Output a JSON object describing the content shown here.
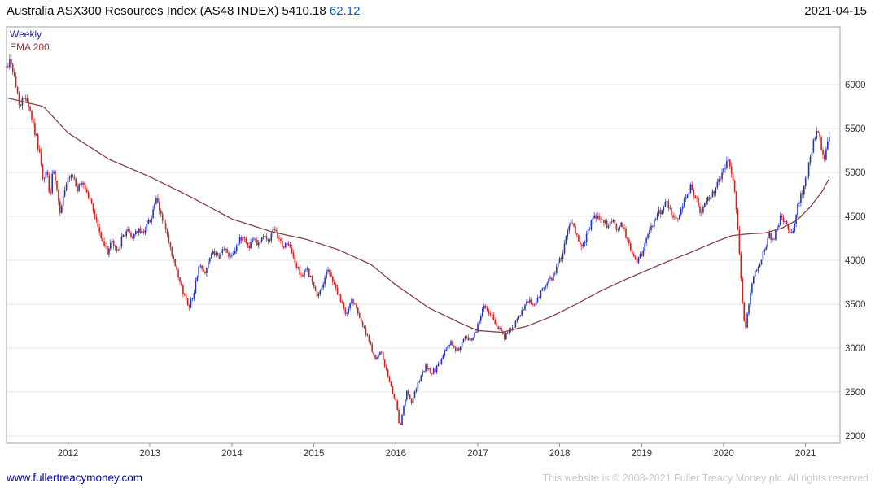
{
  "header": {
    "title": "Australia ASX300 Resources Index (AS48 INDEX)",
    "last_price": "5410.18",
    "change": "62.12",
    "date": "2021-04-15"
  },
  "legend": {
    "timeframe": "Weekly",
    "overlay": "EMA 200"
  },
  "footer": {
    "link": "www.fullertreacymoney.com",
    "copyright": "This website is © 2008-2021 Fuller Treacy Money plc. All rights reserved"
  },
  "colors": {
    "up": "#2233bb",
    "down": "#cc2222",
    "ema": "#8b4040",
    "grid": "#e4e4e4",
    "border": "#a0a0a0",
    "axis_text": "#333333",
    "change": "#1155cc",
    "weekly_label": "#22229a",
    "ema_label": "#993333",
    "link": "#0000bb",
    "copyright": "#c8c8c8"
  },
  "chart_data": {
    "type": "candlestick",
    "title": "Australia ASX300 Resources Index (AS48 INDEX)",
    "timeframe": "Weekly",
    "overlay": "EMA 200",
    "last_price": 5410.18,
    "change": 62.12,
    "as_of": "2021-04-15",
    "xlabel": "",
    "ylabel": "",
    "grid": true,
    "legend_position": "top-left",
    "x_range": [
      2011.25,
      2021.42
    ],
    "y_range": [
      1917,
      6657
    ],
    "x_ticks": [
      2012,
      2013,
      2014,
      2015,
      2016,
      2017,
      2018,
      2019,
      2020,
      2021
    ],
    "y_ticks": [
      6000,
      5500,
      5000,
      4500,
      4000,
      3500,
      3000,
      2500,
      2000
    ],
    "noise_seed": 42,
    "noise_pct": 0.009,
    "series_note": "Anchor points [decimal_year, index_value] traced from chart; weekly candles interpolated between anchors.",
    "price_anchors": [
      [
        2011.25,
        6200
      ],
      [
        2011.3,
        6300
      ],
      [
        2011.36,
        6000
      ],
      [
        2011.42,
        5750
      ],
      [
        2011.48,
        5900
      ],
      [
        2011.54,
        5700
      ],
      [
        2011.6,
        5450
      ],
      [
        2011.65,
        5250
      ],
      [
        2011.7,
        4850
      ],
      [
        2011.74,
        5050
      ],
      [
        2011.78,
        4700
      ],
      [
        2011.82,
        5050
      ],
      [
        2011.86,
        4800
      ],
      [
        2011.9,
        4550
      ],
      [
        2011.95,
        4750
      ],
      [
        2012.0,
        4900
      ],
      [
        2012.06,
        4950
      ],
      [
        2012.12,
        4800
      ],
      [
        2012.18,
        4900
      ],
      [
        2012.24,
        4750
      ],
      [
        2012.3,
        4600
      ],
      [
        2012.36,
        4400
      ],
      [
        2012.42,
        4200
      ],
      [
        2012.48,
        4100
      ],
      [
        2012.54,
        4200
      ],
      [
        2012.6,
        4100
      ],
      [
        2012.66,
        4250
      ],
      [
        2012.72,
        4350
      ],
      [
        2012.78,
        4250
      ],
      [
        2012.84,
        4350
      ],
      [
        2012.9,
        4300
      ],
      [
        2012.96,
        4400
      ],
      [
        2013.02,
        4500
      ],
      [
        2013.07,
        4700
      ],
      [
        2013.12,
        4550
      ],
      [
        2013.18,
        4400
      ],
      [
        2013.24,
        4150
      ],
      [
        2013.3,
        3950
      ],
      [
        2013.36,
        3750
      ],
      [
        2013.42,
        3600
      ],
      [
        2013.48,
        3480
      ],
      [
        2013.54,
        3650
      ],
      [
        2013.6,
        3950
      ],
      [
        2013.66,
        3850
      ],
      [
        2013.72,
        4000
      ],
      [
        2013.78,
        4100
      ],
      [
        2013.84,
        4000
      ],
      [
        2013.9,
        4150
      ],
      [
        2013.96,
        4050
      ],
      [
        2014.02,
        4100
      ],
      [
        2014.08,
        4200
      ],
      [
        2014.14,
        4280
      ],
      [
        2014.2,
        4150
      ],
      [
        2014.26,
        4250
      ],
      [
        2014.32,
        4200
      ],
      [
        2014.38,
        4280
      ],
      [
        2014.44,
        4220
      ],
      [
        2014.5,
        4320
      ],
      [
        2014.56,
        4280
      ],
      [
        2014.62,
        4150
      ],
      [
        2014.68,
        4200
      ],
      [
        2014.74,
        4050
      ],
      [
        2014.8,
        3900
      ],
      [
        2014.86,
        3820
      ],
      [
        2014.92,
        3900
      ],
      [
        2014.98,
        3750
      ],
      [
        2015.04,
        3570
      ],
      [
        2015.1,
        3700
      ],
      [
        2015.16,
        3900
      ],
      [
        2015.22,
        3800
      ],
      [
        2015.28,
        3650
      ],
      [
        2015.34,
        3500
      ],
      [
        2015.4,
        3380
      ],
      [
        2015.46,
        3550
      ],
      [
        2015.52,
        3480
      ],
      [
        2015.58,
        3300
      ],
      [
        2015.64,
        3150
      ],
      [
        2015.7,
        3000
      ],
      [
        2015.76,
        2880
      ],
      [
        2015.82,
        2950
      ],
      [
        2015.88,
        2750
      ],
      [
        2015.94,
        2550
      ],
      [
        2016.0,
        2400
      ],
      [
        2016.05,
        2080
      ],
      [
        2016.09,
        2300
      ],
      [
        2016.14,
        2520
      ],
      [
        2016.19,
        2380
      ],
      [
        2016.25,
        2550
      ],
      [
        2016.31,
        2680
      ],
      [
        2016.37,
        2800
      ],
      [
        2016.43,
        2720
      ],
      [
        2016.49,
        2760
      ],
      [
        2016.55,
        2850
      ],
      [
        2016.61,
        2980
      ],
      [
        2016.67,
        3080
      ],
      [
        2016.73,
        2960
      ],
      [
        2016.79,
        3020
      ],
      [
        2016.85,
        3120
      ],
      [
        2016.91,
        3080
      ],
      [
        2016.97,
        3180
      ],
      [
        2017.03,
        3350
      ],
      [
        2017.08,
        3500
      ],
      [
        2017.14,
        3400
      ],
      [
        2017.2,
        3320
      ],
      [
        2017.26,
        3220
      ],
      [
        2017.32,
        3120
      ],
      [
        2017.38,
        3180
      ],
      [
        2017.44,
        3260
      ],
      [
        2017.5,
        3340
      ],
      [
        2017.56,
        3440
      ],
      [
        2017.62,
        3540
      ],
      [
        2017.68,
        3480
      ],
      [
        2017.74,
        3580
      ],
      [
        2017.8,
        3680
      ],
      [
        2017.86,
        3750
      ],
      [
        2017.92,
        3820
      ],
      [
        2017.98,
        3950
      ],
      [
        2018.04,
        4100
      ],
      [
        2018.1,
        4350
      ],
      [
        2018.16,
        4420
      ],
      [
        2018.22,
        4250
      ],
      [
        2018.28,
        4150
      ],
      [
        2018.34,
        4320
      ],
      [
        2018.4,
        4450
      ],
      [
        2018.46,
        4520
      ],
      [
        2018.52,
        4480
      ],
      [
        2018.58,
        4380
      ],
      [
        2018.64,
        4480
      ],
      [
        2018.7,
        4350
      ],
      [
        2018.76,
        4420
      ],
      [
        2018.82,
        4220
      ],
      [
        2018.88,
        4100
      ],
      [
        2018.94,
        3980
      ],
      [
        2019.0,
        4080
      ],
      [
        2019.06,
        4250
      ],
      [
        2019.12,
        4380
      ],
      [
        2019.18,
        4480
      ],
      [
        2019.24,
        4580
      ],
      [
        2019.3,
        4650
      ],
      [
        2019.36,
        4550
      ],
      [
        2019.42,
        4450
      ],
      [
        2019.48,
        4600
      ],
      [
        2019.54,
        4750
      ],
      [
        2019.6,
        4850
      ],
      [
        2019.66,
        4700
      ],
      [
        2019.72,
        4550
      ],
      [
        2019.78,
        4650
      ],
      [
        2019.84,
        4720
      ],
      [
        2019.9,
        4820
      ],
      [
        2019.96,
        4950
      ],
      [
        2020.02,
        5080
      ],
      [
        2020.06,
        5180
      ],
      [
        2020.1,
        5000
      ],
      [
        2020.14,
        4750
      ],
      [
        2020.18,
        4300
      ],
      [
        2020.22,
        3650
      ],
      [
        2020.26,
        3200
      ],
      [
        2020.3,
        3450
      ],
      [
        2020.34,
        3750
      ],
      [
        2020.4,
        3900
      ],
      [
        2020.46,
        4020
      ],
      [
        2020.52,
        4150
      ],
      [
        2020.56,
        4300
      ],
      [
        2020.6,
        4220
      ],
      [
        2020.66,
        4380
      ],
      [
        2020.7,
        4520
      ],
      [
        2020.74,
        4450
      ],
      [
        2020.78,
        4350
      ],
      [
        2020.82,
        4260
      ],
      [
        2020.86,
        4420
      ],
      [
        2020.9,
        4600
      ],
      [
        2020.94,
        4720
      ],
      [
        2020.98,
        4820
      ],
      [
        2021.02,
        4980
      ],
      [
        2021.06,
        5180
      ],
      [
        2021.1,
        5380
      ],
      [
        2021.14,
        5500
      ],
      [
        2021.17,
        5380
      ],
      [
        2021.2,
        5250
      ],
      [
        2021.23,
        5120
      ],
      [
        2021.26,
        5320
      ],
      [
        2021.3,
        5410.18
      ]
    ],
    "ema_anchors": [
      [
        2011.25,
        5850
      ],
      [
        2011.7,
        5750
      ],
      [
        2012.0,
        5450
      ],
      [
        2012.5,
        5150
      ],
      [
        2013.0,
        4950
      ],
      [
        2013.5,
        4720
      ],
      [
        2014.0,
        4470
      ],
      [
        2014.5,
        4320
      ],
      [
        2014.9,
        4240
      ],
      [
        2015.3,
        4120
      ],
      [
        2015.7,
        3950
      ],
      [
        2016.0,
        3720
      ],
      [
        2016.4,
        3460
      ],
      [
        2016.8,
        3280
      ],
      [
        2017.0,
        3200
      ],
      [
        2017.3,
        3180
      ],
      [
        2017.6,
        3250
      ],
      [
        2017.9,
        3360
      ],
      [
        2018.2,
        3500
      ],
      [
        2018.5,
        3650
      ],
      [
        2018.8,
        3780
      ],
      [
        2019.0,
        3860
      ],
      [
        2019.3,
        3980
      ],
      [
        2019.6,
        4090
      ],
      [
        2019.9,
        4210
      ],
      [
        2020.1,
        4280
      ],
      [
        2020.3,
        4300
      ],
      [
        2020.5,
        4310
      ],
      [
        2020.7,
        4360
      ],
      [
        2020.9,
        4460
      ],
      [
        2021.05,
        4600
      ],
      [
        2021.2,
        4780
      ],
      [
        2021.3,
        4950
      ]
    ]
  }
}
